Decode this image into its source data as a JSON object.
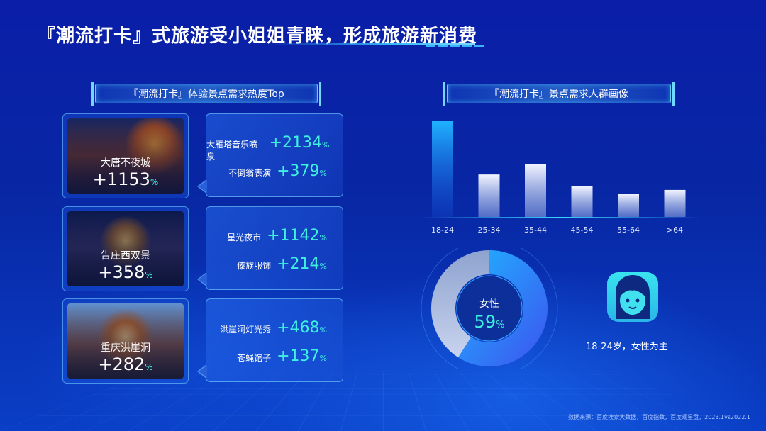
{
  "title": "『潮流打卡』式旅游受小姐姐青睐，形成旅游新消费",
  "left_section_title": "『潮流打卡』体验景点需求热度Top",
  "right_section_title": "『潮流打卡』景点需求人群画像",
  "attractions": [
    {
      "name": "大唐不夜城",
      "value": "+1153",
      "unit": "%",
      "items": [
        {
          "label": "大雁塔音乐喷泉",
          "value": "+2134",
          "unit": "%"
        },
        {
          "label": "不倒翁表演",
          "value": "+379",
          "unit": "%"
        }
      ]
    },
    {
      "name": "告庄西双景",
      "value": "+358",
      "unit": "%",
      "items": [
        {
          "label": "星光夜市",
          "value": "+1142",
          "unit": "%"
        },
        {
          "label": "傣族服饰",
          "value": "+214",
          "unit": "%"
        }
      ]
    },
    {
      "name": "重庆洪崖洞",
      "value": "+282",
      "unit": "%",
      "items": [
        {
          "label": "洪崖洞灯光秀",
          "value": "+468",
          "unit": "%"
        },
        {
          "label": "苍蝇馆子",
          "value": "+137",
          "unit": "%"
        }
      ]
    }
  ],
  "chart_data": {
    "type": "bar",
    "categories": [
      "18-24",
      "25-34",
      "35-44",
      "45-54",
      "55-64",
      ">64"
    ],
    "values": [
      100,
      44,
      55,
      32,
      24,
      28
    ],
    "ylim": [
      0,
      100
    ],
    "title": "",
    "xlabel": "",
    "ylabel": ""
  },
  "gender": {
    "label": "女性",
    "value": "59",
    "unit": "%",
    "fraction": 0.59
  },
  "persona_caption": "18-24岁，女性为主",
  "source": "数据来源：百度搜索大数据，百度指数，百度观星盘，2023.1vs2022.1",
  "colors": {
    "accent": "#3ff0e0",
    "highlight_bar": "#1aa0ff",
    "bar": "#e6ebf8"
  }
}
